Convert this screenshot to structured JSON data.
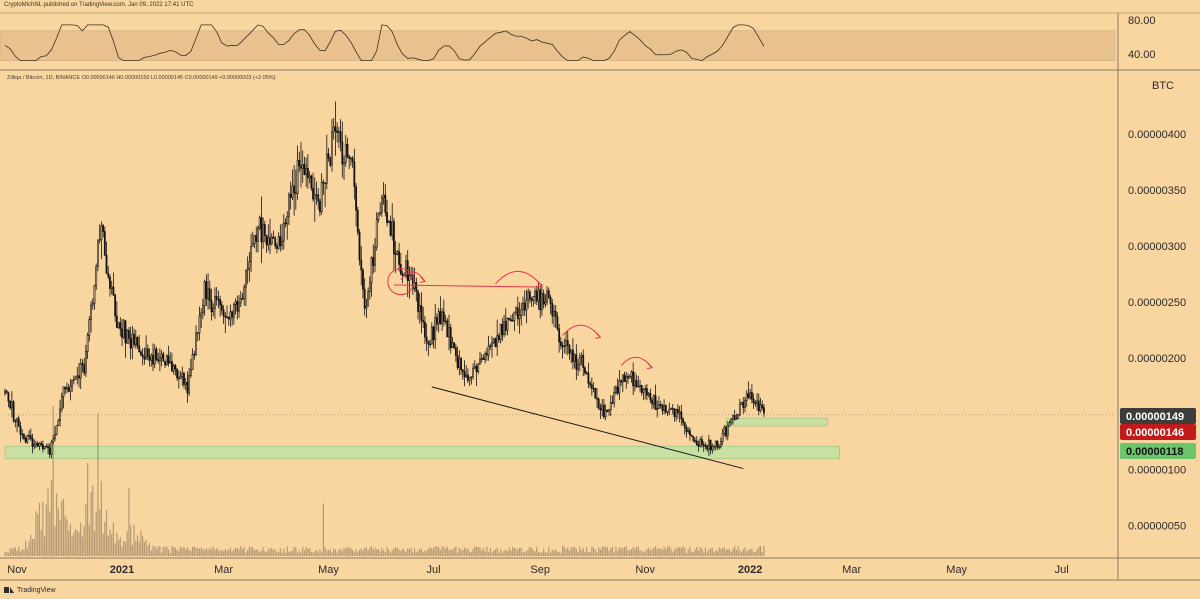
{
  "header": {
    "publisher_line": "CryptoMichNL published on TradingView.com, Jan 09, 2022 17:41 UTC",
    "symbol_line": "Zilliqa / Bitcoin, 1D, BINANCE  O0.00000146 H0.00000150 L0.00000145 C0.00000149 +0.00000003 (+2.05%)"
  },
  "brand": {
    "label": "TradingView",
    "icon": "tradingview-logo-icon"
  },
  "colors": {
    "background": "#f9d5a0",
    "candle": "#141414",
    "trend_line": "#141414",
    "annotation": "#e8344a",
    "support_zone": "#b9e3a3",
    "badge_last": "#3c3c3c",
    "badge_red": "#c01a1a",
    "badge_green": "#6cc56c",
    "rsi_band": "#e9c18f",
    "volume": "#7a6a50"
  },
  "rsi": {
    "levels": [
      "80.00",
      "40.00"
    ],
    "band": [
      30,
      70
    ],
    "range": [
      20,
      90
    ]
  },
  "price_axis": {
    "unit": "BTC",
    "ticks": [
      "0.00000400",
      "0.00000350",
      "0.00000300",
      "0.00000250",
      "0.00000200",
      "0.00000100",
      "0.00000050"
    ],
    "tick_values": [
      4e-06,
      3.5e-06,
      3e-06,
      2.5e-06,
      2e-06,
      1e-06,
      5e-07
    ]
  },
  "badges": [
    {
      "label": "0.00000149",
      "value": 1.49e-06,
      "kind": "last"
    },
    {
      "label": "0.00000146",
      "value": 1.46e-06,
      "kind": "red"
    },
    {
      "label": "0.00000118",
      "value": 1.18e-06,
      "kind": "green"
    }
  ],
  "time_axis": {
    "labels": [
      {
        "text": "Nov",
        "year": false
      },
      {
        "text": "2021",
        "year": true
      },
      {
        "text": "Mar",
        "year": false
      },
      {
        "text": "May",
        "year": false
      },
      {
        "text": "Jul",
        "year": false
      },
      {
        "text": "Sep",
        "year": false
      },
      {
        "text": "Nov",
        "year": false
      },
      {
        "text": "2022",
        "year": true
      },
      {
        "text": "Mar",
        "year": false
      },
      {
        "text": "May",
        "year": false
      },
      {
        "text": "Jul",
        "year": false
      }
    ]
  },
  "chart_data": {
    "type": "candlestick",
    "title": "Zilliqa / Bitcoin, 1D, BINANCE",
    "y_unit": "BTC",
    "ylim": [
      3e-07,
      4.5e-06
    ],
    "x_range": [
      "2020-10-25",
      "2022-08-01"
    ],
    "grid": false,
    "price_path": [
      [
        "2020-10-25",
        1.68e-06
      ],
      [
        "2020-11-05",
        1.28e-06
      ],
      [
        "2020-11-20",
        1.18e-06
      ],
      [
        "2020-11-28",
        1.68e-06
      ],
      [
        "2020-12-10",
        1.9e-06
      ],
      [
        "2020-12-20",
        3.2e-06
      ],
      [
        "2020-12-28",
        2.35e-06
      ],
      [
        "2021-01-10",
        2.08e-06
      ],
      [
        "2021-01-25",
        2e-06
      ],
      [
        "2021-02-08",
        1.75e-06
      ],
      [
        "2021-02-18",
        2.6e-06
      ],
      [
        "2021-03-01",
        2.35e-06
      ],
      [
        "2021-03-10",
        2.45e-06
      ],
      [
        "2021-03-22",
        3.2e-06
      ],
      [
        "2021-04-01",
        3e-06
      ],
      [
        "2021-04-15",
        3.8e-06
      ],
      [
        "2021-04-25",
        3.35e-06
      ],
      [
        "2021-05-05",
        4e-06
      ],
      [
        "2021-05-15",
        3.75e-06
      ],
      [
        "2021-05-22",
        2.4e-06
      ],
      [
        "2021-06-01",
        3.45e-06
      ],
      [
        "2021-06-10",
        2.9e-06
      ],
      [
        "2021-06-18",
        2.7e-06
      ],
      [
        "2021-06-28",
        2.1e-06
      ],
      [
        "2021-07-05",
        2.4e-06
      ],
      [
        "2021-07-20",
        1.8e-06
      ],
      [
        "2021-08-05",
        2.15e-06
      ],
      [
        "2021-08-20",
        2.45e-06
      ],
      [
        "2021-09-05",
        2.55e-06
      ],
      [
        "2021-09-15",
        2.1e-06
      ],
      [
        "2021-09-25",
        1.95e-06
      ],
      [
        "2021-10-08",
        1.5e-06
      ],
      [
        "2021-10-22",
        1.85e-06
      ],
      [
        "2021-11-05",
        1.6e-06
      ],
      [
        "2021-11-20",
        1.5e-06
      ],
      [
        "2021-12-01",
        1.25e-06
      ],
      [
        "2021-12-12",
        1.2e-06
      ],
      [
        "2021-12-22",
        1.45e-06
      ],
      [
        "2022-01-01",
        1.7e-06
      ],
      [
        "2022-01-09",
        1.49e-06
      ]
    ],
    "volume_spikes": [
      [
        "2020-11-22",
        1.0
      ],
      [
        "2020-12-18",
        0.95
      ],
      [
        "2020-12-12",
        0.62
      ],
      [
        "2021-01-05",
        0.45
      ],
      [
        "2021-04-28",
        0.35
      ]
    ],
    "support_zones": [
      {
        "from": "2020-10-25",
        "to": "2022-02-22",
        "low": 1.1e-06,
        "high": 1.21e-06
      },
      {
        "from": "2021-12-18",
        "to": "2022-02-15",
        "low": 1.39e-06,
        "high": 1.46e-06
      }
    ],
    "trend_line": [
      {
        "x": "2021-06-30",
        "y": 1.74e-06
      },
      {
        "x": "2021-12-28",
        "y": 1.01e-06
      }
    ],
    "horizontal_line": {
      "from": "2021-06-08",
      "to": "2021-08-31",
      "y": 2.65e-06
    },
    "annotations": [
      {
        "type": "circle",
        "x": "2021-06-12",
        "y": 2.68e-06
      },
      {
        "type": "arc-arrow",
        "from": "2021-06-12",
        "to": "2021-06-26",
        "y": 2.7e-06
      },
      {
        "type": "arc-arrow",
        "from": "2021-08-06",
        "to": "2021-09-02",
        "y": 2.66e-06
      },
      {
        "type": "arc-arrow",
        "from": "2021-09-14",
        "to": "2021-10-06",
        "y": 2.2e-06
      },
      {
        "type": "arc-arrow",
        "from": "2021-10-18",
        "to": "2021-11-05",
        "y": 1.93e-06
      }
    ]
  }
}
